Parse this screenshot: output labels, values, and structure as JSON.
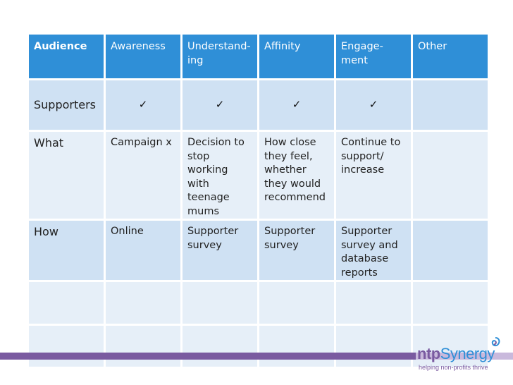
{
  "table": {
    "header": [
      "Audience",
      "Awareness",
      "Understand-ing",
      "Affinity",
      "Engage-ment",
      "Other"
    ],
    "rows": [
      {
        "label": "Supporters",
        "cells": [
          "✓",
          "✓",
          "✓",
          "✓",
          ""
        ]
      },
      {
        "label": "What",
        "cells": [
          "Campaign x",
          "Decision to stop working with teenage mums",
          "How close they feel, whether they would recommend",
          "Continue to support/ increase",
          ""
        ]
      },
      {
        "label": "How",
        "cells": [
          "Online",
          "Supporter survey",
          "Supporter survey",
          "Supporter survey and database reports",
          ""
        ]
      },
      {
        "label": "",
        "cells": [
          "",
          "",
          "",
          "",
          ""
        ]
      },
      {
        "label": "",
        "cells": [
          "",
          "",
          "",
          "",
          ""
        ]
      }
    ]
  },
  "footer": {
    "logo_ntp": "ntp",
    "logo_synergy": "Synergy",
    "tagline": "helping non-profits thrive",
    "colors": {
      "purple": "#7a5aa0",
      "blue": "#2f8fd7",
      "lavender": "#c9b9dc"
    }
  }
}
